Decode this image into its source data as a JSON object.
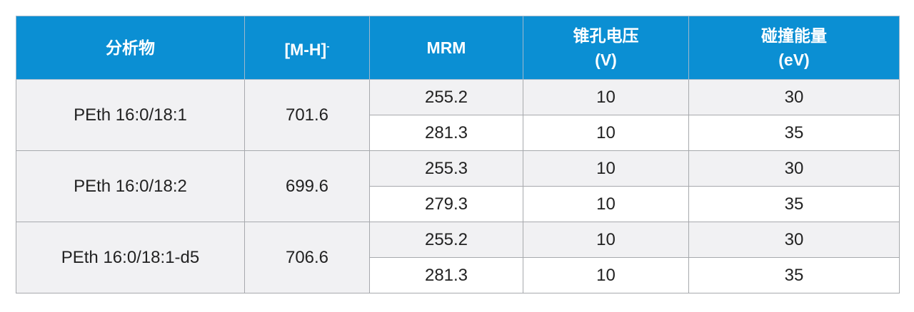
{
  "table": {
    "header": [
      {
        "lines": [
          "分析物"
        ]
      },
      {
        "lines": [
          "[M-H]"
        ],
        "sup": "-"
      },
      {
        "lines": [
          "MRM"
        ]
      },
      {
        "lines": [
          "锥孔电压",
          "(V)"
        ]
      },
      {
        "lines": [
          "碰撞能量",
          "(eV)"
        ]
      }
    ],
    "groups": [
      {
        "analyte": "PEth 16:0/18:1",
        "mh": "701.6",
        "rows": [
          [
            "255.2",
            "10",
            "30"
          ],
          [
            "281.3",
            "10",
            "35"
          ]
        ]
      },
      {
        "analyte": "PEth 16:0/18:2",
        "mh": "699.6",
        "rows": [
          [
            "255.3",
            "10",
            "30"
          ],
          [
            "279.3",
            "10",
            "35"
          ]
        ]
      },
      {
        "analyte": "PEth 16:0/18:1-d5",
        "mh": "706.6",
        "rows": [
          [
            "255.2",
            "10",
            "30"
          ],
          [
            "281.3",
            "10",
            "35"
          ]
        ]
      }
    ]
  }
}
